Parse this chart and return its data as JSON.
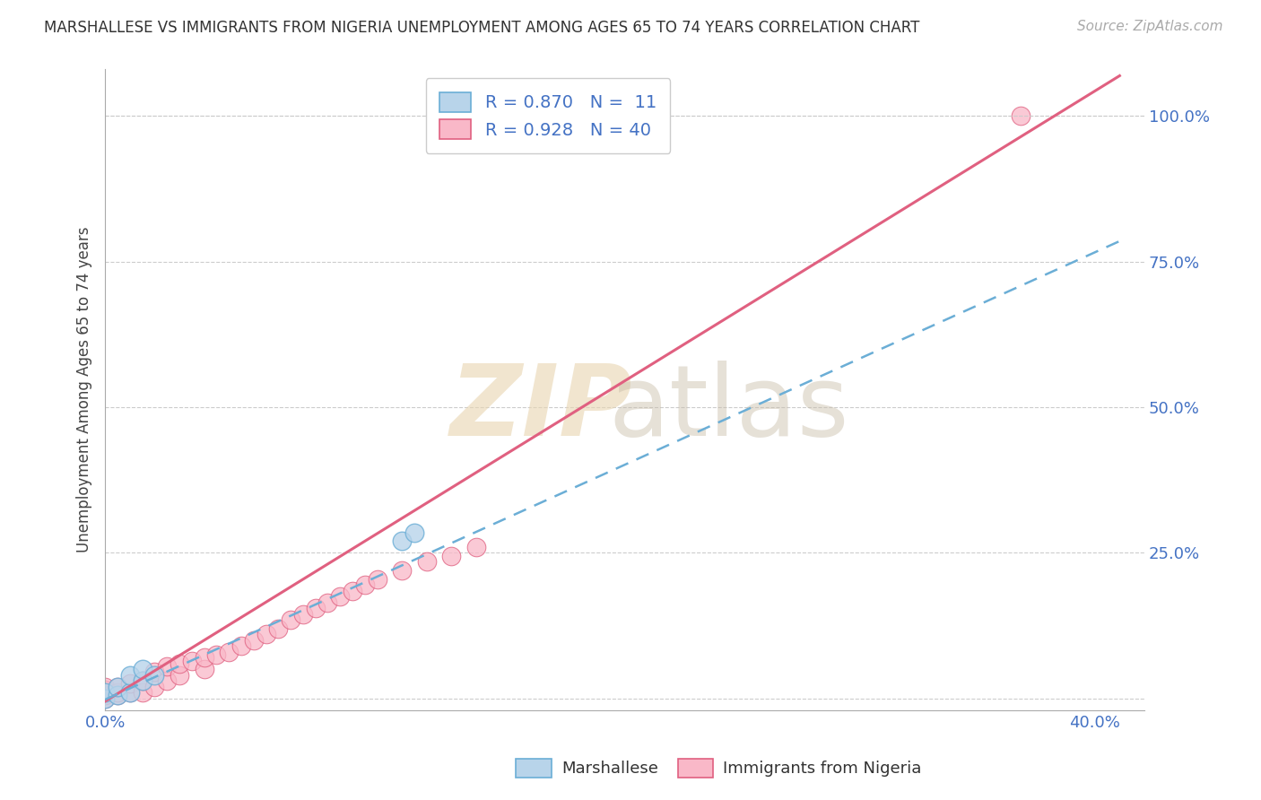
{
  "title": "MARSHALLESE VS IMMIGRANTS FROM NIGERIA UNEMPLOYMENT AMONG AGES 65 TO 74 YEARS CORRELATION CHART",
  "source": "Source: ZipAtlas.com",
  "ylabel": "Unemployment Among Ages 65 to 74 years",
  "xlim": [
    0.0,
    0.42
  ],
  "ylim": [
    -0.02,
    1.08
  ],
  "x_ticks": [
    0.0,
    0.1,
    0.2,
    0.3,
    0.4
  ],
  "x_tick_labels": [
    "0.0%",
    "",
    "",
    "",
    "40.0%"
  ],
  "y_ticks": [
    0.0,
    0.25,
    0.5,
    0.75,
    1.0
  ],
  "y_tick_labels": [
    "",
    "25.0%",
    "50.0%",
    "75.0%",
    "100.0%"
  ],
  "marshallese_fill": "#b8d4ea",
  "marshallese_edge": "#6baed6",
  "nigeria_fill": "#f9b8c8",
  "nigeria_edge": "#e06080",
  "marshallese_line_color": "#6baed6",
  "nigeria_line_color": "#e06080",
  "legend_R_color": "#4472c4",
  "marshallese_R": 0.87,
  "marshallese_N": 11,
  "nigeria_R": 0.928,
  "nigeria_N": 40,
  "marshallese_x": [
    0.0,
    0.0,
    0.005,
    0.005,
    0.01,
    0.01,
    0.015,
    0.015,
    0.02,
    0.12,
    0.125
  ],
  "marshallese_y": [
    0.0,
    0.01,
    0.005,
    0.02,
    0.01,
    0.04,
    0.03,
    0.05,
    0.04,
    0.27,
    0.285
  ],
  "nigeria_x": [
    0.0,
    0.0,
    0.0,
    0.0,
    0.0,
    0.005,
    0.005,
    0.005,
    0.01,
    0.01,
    0.015,
    0.015,
    0.02,
    0.02,
    0.025,
    0.025,
    0.03,
    0.03,
    0.035,
    0.04,
    0.04,
    0.045,
    0.05,
    0.055,
    0.06,
    0.065,
    0.07,
    0.075,
    0.08,
    0.085,
    0.09,
    0.095,
    0.1,
    0.105,
    0.11,
    0.12,
    0.13,
    0.14,
    0.15,
    0.37
  ],
  "nigeria_y": [
    0.0,
    0.005,
    0.01,
    0.015,
    0.02,
    0.005,
    0.01,
    0.02,
    0.01,
    0.025,
    0.01,
    0.03,
    0.02,
    0.045,
    0.03,
    0.055,
    0.04,
    0.06,
    0.065,
    0.05,
    0.07,
    0.075,
    0.08,
    0.09,
    0.1,
    0.11,
    0.12,
    0.135,
    0.145,
    0.155,
    0.165,
    0.175,
    0.185,
    0.195,
    0.205,
    0.22,
    0.235,
    0.245,
    0.26,
    1.0
  ],
  "nigeria_line_slope": 2.62,
  "nigeria_line_intercept": -0.005,
  "marshallese_line_slope": 1.92,
  "marshallese_line_intercept": -0.002,
  "background_color": "#ffffff",
  "grid_color": "#cccccc"
}
